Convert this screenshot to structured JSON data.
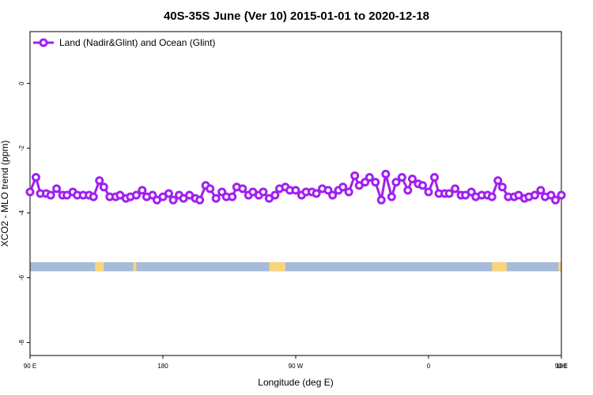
{
  "chart_data": {
    "type": "line",
    "title": "40S-35S June (Ver 10)   2015-01-01 to 2020-12-18",
    "xlabel": "Longitude (deg E)",
    "ylabel": "XCO2 - MLO trend (ppm)",
    "xlim": [
      90,
      450
    ],
    "ylim": [
      -8.4,
      1.6
    ],
    "x_ticks": [
      {
        "value": 90,
        "label": "90 E"
      },
      {
        "value": 180,
        "label": "180"
      },
      {
        "value": 270,
        "label": "90 W"
      },
      {
        "value": 360,
        "label": "0"
      },
      {
        "value": 450,
        "label": "90 E"
      },
      {
        "value": 540,
        "label": "180"
      }
    ],
    "y_ticks": [
      0,
      -2,
      -4,
      -6,
      -8
    ],
    "legend": {
      "position": "top-left"
    },
    "colors": {
      "series": "#a020f0",
      "band": "#a5bbd8",
      "land": "#f7d67b"
    },
    "land_band": {
      "y_top": -5.52,
      "y_bottom": -5.8
    },
    "land_segments": [
      [
        134,
        140
      ],
      [
        160,
        162
      ],
      [
        252,
        263
      ],
      [
        403,
        413
      ],
      [
        448,
        450
      ]
    ],
    "series": [
      {
        "name": "Land (Nadir&Glint) and Ocean (Glint)",
        "x": [
          90,
          94,
          97,
          101,
          104,
          108,
          112,
          115,
          119,
          122,
          126,
          130,
          133,
          137,
          140,
          144,
          148,
          151,
          155,
          158,
          162,
          166,
          169,
          173,
          176,
          180,
          184,
          187,
          191,
          194,
          198,
          202,
          205,
          209,
          212,
          216,
          220,
          223,
          227,
          230,
          234,
          238,
          241,
          245,
          248,
          252,
          256,
          259,
          263,
          266,
          270,
          274,
          277,
          281,
          284,
          288,
          292,
          295,
          299,
          302,
          306,
          310,
          313,
          317,
          320,
          324,
          328,
          331,
          335,
          338,
          342,
          346,
          349,
          353,
          356,
          360,
          364,
          367,
          371,
          374,
          378,
          382,
          385,
          389,
          392,
          396,
          400,
          403,
          407,
          410,
          414,
          418,
          421,
          425,
          428,
          432,
          436,
          439,
          443,
          446,
          450
        ],
        "y": [
          -3.35,
          -2.9,
          -3.4,
          -3.4,
          -3.45,
          -3.25,
          -3.45,
          -3.45,
          -3.35,
          -3.45,
          -3.45,
          -3.45,
          -3.5,
          -3.0,
          -3.2,
          -3.5,
          -3.5,
          -3.45,
          -3.55,
          -3.5,
          -3.45,
          -3.3,
          -3.5,
          -3.45,
          -3.6,
          -3.5,
          -3.4,
          -3.6,
          -3.45,
          -3.55,
          -3.45,
          -3.55,
          -3.6,
          -3.15,
          -3.25,
          -3.55,
          -3.35,
          -3.5,
          -3.5,
          -3.2,
          -3.25,
          -3.45,
          -3.35,
          -3.45,
          -3.35,
          -3.55,
          -3.45,
          -3.25,
          -3.2,
          -3.3,
          -3.3,
          -3.45,
          -3.35,
          -3.35,
          -3.4,
          -3.25,
          -3.3,
          -3.45,
          -3.3,
          -3.2,
          -3.35,
          -2.85,
          -3.15,
          -3.05,
          -2.9,
          -3.05,
          -3.6,
          -2.8,
          -3.5,
          -3.05,
          -2.9,
          -3.3,
          -2.95,
          -3.1,
          -3.15,
          -3.35,
          -2.9,
          -3.4,
          -3.4,
          -3.4,
          -3.25,
          -3.45,
          -3.45,
          -3.35,
          -3.5,
          -3.45,
          -3.45,
          -3.5,
          -3.0,
          -3.2,
          -3.5,
          -3.5,
          -3.45,
          -3.55,
          -3.5,
          -3.45,
          -3.3,
          -3.5,
          -3.45,
          -3.6,
          -3.45
        ]
      }
    ]
  }
}
